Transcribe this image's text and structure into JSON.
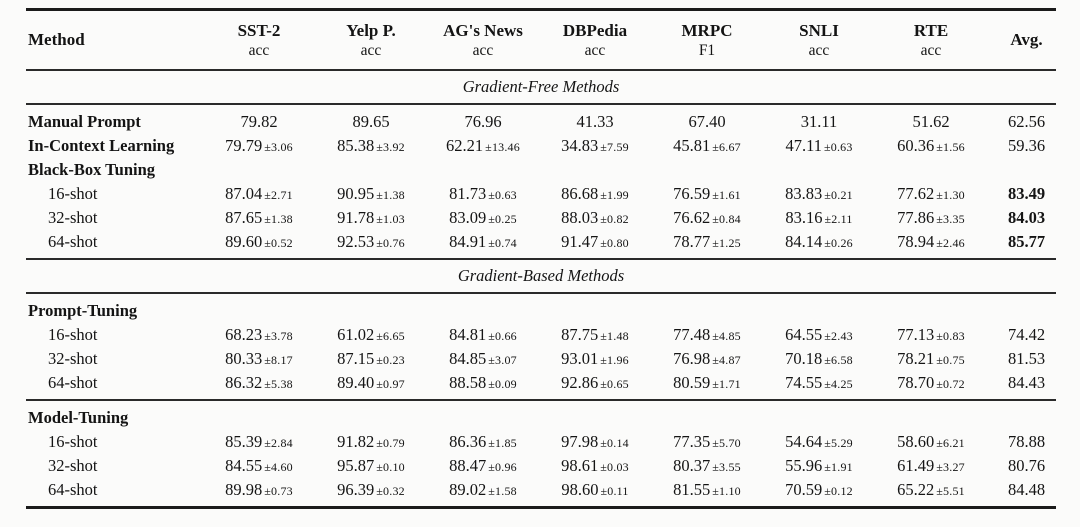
{
  "table": {
    "rule_color": "#1b1b1b",
    "background": "#fbfbfa",
    "header": {
      "method_label": "Method",
      "avg_label": "Avg.",
      "columns": [
        {
          "name": "SST-2",
          "metric": "acc"
        },
        {
          "name": "Yelp P.",
          "metric": "acc"
        },
        {
          "name": "AG's News",
          "metric": "acc"
        },
        {
          "name": "DBPedia",
          "metric": "acc"
        },
        {
          "name": "MRPC",
          "metric": "F1"
        },
        {
          "name": "SNLI",
          "metric": "acc"
        },
        {
          "name": "RTE",
          "metric": "acc"
        }
      ]
    },
    "layout": [
      {
        "type": "band",
        "title": "Gradient-Free Methods"
      },
      {
        "type": "block",
        "rows": [
          {
            "method": "Manual Prompt",
            "style": "group",
            "cells": [
              {
                "m": "79.82"
              },
              {
                "m": "89.65"
              },
              {
                "m": "76.96"
              },
              {
                "m": "41.33"
              },
              {
                "m": "67.40"
              },
              {
                "m": "31.11"
              },
              {
                "m": "51.62"
              }
            ],
            "avg": "62.56",
            "avg_bold": false
          },
          {
            "method": "In-Context Learning",
            "style": "group",
            "cells": [
              {
                "m": "79.79",
                "s": "±3.06"
              },
              {
                "m": "85.38",
                "s": "±3.92"
              },
              {
                "m": "62.21",
                "s": "±13.46"
              },
              {
                "m": "34.83",
                "s": "±7.59"
              },
              {
                "m": "45.81",
                "s": "±6.67"
              },
              {
                "m": "47.11",
                "s": "±0.63"
              },
              {
                "m": "60.36",
                "s": "±1.56"
              }
            ],
            "avg": "59.36",
            "avg_bold": false
          },
          {
            "method": "Black-Box Tuning",
            "style": "group",
            "cells": [],
            "avg": null
          },
          {
            "method": "16-shot",
            "style": "shot",
            "cells": [
              {
                "m": "87.04",
                "s": "±2.71"
              },
              {
                "m": "90.95",
                "s": "±1.38"
              },
              {
                "m": "81.73",
                "s": "±0.63"
              },
              {
                "m": "86.68",
                "s": "±1.99"
              },
              {
                "m": "76.59",
                "s": "±1.61"
              },
              {
                "m": "83.83",
                "s": "±0.21"
              },
              {
                "m": "77.62",
                "s": "±1.30"
              }
            ],
            "avg": "83.49",
            "avg_bold": true
          },
          {
            "method": "32-shot",
            "style": "shot",
            "cells": [
              {
                "m": "87.65",
                "s": "±1.38"
              },
              {
                "m": "91.78",
                "s": "±1.03"
              },
              {
                "m": "83.09",
                "s": "±0.25"
              },
              {
                "m": "88.03",
                "s": "±0.82"
              },
              {
                "m": "76.62",
                "s": "±0.84"
              },
              {
                "m": "83.16",
                "s": "±2.11"
              },
              {
                "m": "77.86",
                "s": "±3.35"
              }
            ],
            "avg": "84.03",
            "avg_bold": true
          },
          {
            "method": "64-shot",
            "style": "shot",
            "cells": [
              {
                "m": "89.60",
                "s": "±0.52"
              },
              {
                "m": "92.53",
                "s": "±0.76"
              },
              {
                "m": "84.91",
                "s": "±0.74"
              },
              {
                "m": "91.47",
                "s": "±0.80"
              },
              {
                "m": "78.77",
                "s": "±1.25"
              },
              {
                "m": "84.14",
                "s": "±0.26"
              },
              {
                "m": "78.94",
                "s": "±2.46"
              }
            ],
            "avg": "85.77",
            "avg_bold": true
          }
        ]
      },
      {
        "type": "band",
        "title": "Gradient-Based Methods"
      },
      {
        "type": "block",
        "rows": [
          {
            "method": "Prompt-Tuning",
            "style": "group",
            "cells": [],
            "avg": null
          },
          {
            "method": "16-shot",
            "style": "shot",
            "cells": [
              {
                "m": "68.23",
                "s": "±3.78"
              },
              {
                "m": "61.02",
                "s": "±6.65"
              },
              {
                "m": "84.81",
                "s": "±0.66"
              },
              {
                "m": "87.75",
                "s": "±1.48"
              },
              {
                "m": "77.48",
                "s": "±4.85"
              },
              {
                "m": "64.55",
                "s": "±2.43"
              },
              {
                "m": "77.13",
                "s": "±0.83"
              }
            ],
            "avg": "74.42",
            "avg_bold": false
          },
          {
            "method": "32-shot",
            "style": "shot",
            "cells": [
              {
                "m": "80.33",
                "s": "±8.17"
              },
              {
                "m": "87.15",
                "s": "±0.23"
              },
              {
                "m": "84.85",
                "s": "±3.07"
              },
              {
                "m": "93.01",
                "s": "±1.96"
              },
              {
                "m": "76.98",
                "s": "±4.87"
              },
              {
                "m": "70.18",
                "s": "±6.58"
              },
              {
                "m": "78.21",
                "s": "±0.75"
              }
            ],
            "avg": "81.53",
            "avg_bold": false
          },
          {
            "method": "64-shot",
            "style": "shot",
            "cells": [
              {
                "m": "86.32",
                "s": "±5.38"
              },
              {
                "m": "89.40",
                "s": "±0.97"
              },
              {
                "m": "88.58",
                "s": "±0.09"
              },
              {
                "m": "92.86",
                "s": "±0.65"
              },
              {
                "m": "80.59",
                "s": "±1.71"
              },
              {
                "m": "74.55",
                "s": "±4.25"
              },
              {
                "m": "78.70",
                "s": "±0.72"
              }
            ],
            "avg": "84.43",
            "avg_bold": false
          }
        ]
      },
      {
        "type": "block",
        "rows": [
          {
            "method": "Model-Tuning",
            "style": "group",
            "cells": [],
            "avg": null
          },
          {
            "method": "16-shot",
            "style": "shot",
            "cells": [
              {
                "m": "85.39",
                "s": "±2.84"
              },
              {
                "m": "91.82",
                "s": "±0.79"
              },
              {
                "m": "86.36",
                "s": "±1.85"
              },
              {
                "m": "97.98",
                "s": "±0.14"
              },
              {
                "m": "77.35",
                "s": "±5.70"
              },
              {
                "m": "54.64",
                "s": "±5.29"
              },
              {
                "m": "58.60",
                "s": "±6.21"
              }
            ],
            "avg": "78.88",
            "avg_bold": false
          },
          {
            "method": "32-shot",
            "style": "shot",
            "cells": [
              {
                "m": "84.55",
                "s": "±4.60"
              },
              {
                "m": "95.87",
                "s": "±0.10"
              },
              {
                "m": "88.47",
                "s": "±0.96"
              },
              {
                "m": "98.61",
                "s": "±0.03"
              },
              {
                "m": "80.37",
                "s": "±3.55"
              },
              {
                "m": "55.96",
                "s": "±1.91"
              },
              {
                "m": "61.49",
                "s": "±3.27"
              }
            ],
            "avg": "80.76",
            "avg_bold": false
          },
          {
            "method": "64-shot",
            "style": "shot",
            "cells": [
              {
                "m": "89.98",
                "s": "±0.73"
              },
              {
                "m": "96.39",
                "s": "±0.32"
              },
              {
                "m": "89.02",
                "s": "±1.58"
              },
              {
                "m": "98.60",
                "s": "±0.11"
              },
              {
                "m": "81.55",
                "s": "±1.10"
              },
              {
                "m": "70.59",
                "s": "±0.12"
              },
              {
                "m": "65.22",
                "s": "±5.51"
              }
            ],
            "avg": "84.48",
            "avg_bold": false
          }
        ]
      }
    ]
  }
}
